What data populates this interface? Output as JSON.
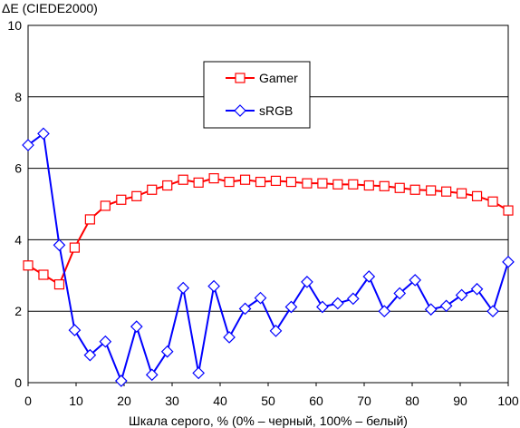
{
  "chart_data": {
    "type": "line",
    "ylabel": "ΔE (CIEDE2000)",
    "xlabel": "Шкала серого, % (0% – черный, 100% – белый)",
    "xlim": [
      0,
      100
    ],
    "ylim": [
      0,
      10
    ],
    "xticks": [
      "0",
      "10",
      "20",
      "30",
      "40",
      "50",
      "60",
      "70",
      "80",
      "90",
      "100"
    ],
    "yticks": [
      "0",
      "2",
      "4",
      "6",
      "8",
      "10"
    ],
    "grid": "horizontal",
    "legend_position": "top-center",
    "x": [
      0,
      3.2,
      6.5,
      9.7,
      12.9,
      16.1,
      19.4,
      22.6,
      25.8,
      29.0,
      32.3,
      35.5,
      38.7,
      41.9,
      45.2,
      48.4,
      51.6,
      54.8,
      58.1,
      61.3,
      64.5,
      67.7,
      71.0,
      74.2,
      77.4,
      80.6,
      83.9,
      87.1,
      90.3,
      93.5,
      96.8,
      100
    ],
    "series": [
      {
        "name": "Gamer",
        "color": "#ff0000",
        "marker": "square",
        "values": [
          3.28,
          3.02,
          2.75,
          3.78,
          4.57,
          4.95,
          5.12,
          5.22,
          5.4,
          5.52,
          5.68,
          5.6,
          5.72,
          5.62,
          5.68,
          5.62,
          5.65,
          5.62,
          5.58,
          5.58,
          5.55,
          5.55,
          5.52,
          5.5,
          5.45,
          5.4,
          5.38,
          5.35,
          5.3,
          5.22,
          5.07,
          4.82
        ]
      },
      {
        "name": "sRGB",
        "color": "#0000ff",
        "marker": "diamond",
        "values": [
          6.65,
          6.97,
          3.85,
          1.47,
          0.77,
          1.15,
          0.05,
          1.57,
          0.22,
          0.87,
          2.65,
          0.27,
          2.7,
          1.27,
          2.07,
          2.37,
          1.45,
          2.12,
          2.82,
          2.12,
          2.22,
          2.35,
          2.97,
          2.0,
          2.5,
          2.87,
          2.05,
          2.15,
          2.45,
          2.62,
          2.0,
          3.38
        ]
      }
    ]
  }
}
